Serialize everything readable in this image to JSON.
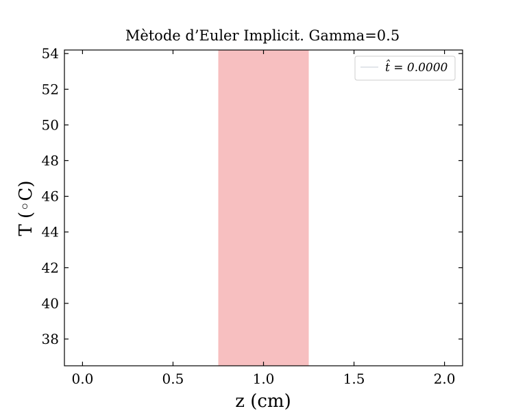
{
  "chart_data": {
    "type": "line",
    "title": "Mètode d’Euler Implicit. Gamma=0.5",
    "xlabel": "z (cm)",
    "ylabel": "T (◦C)",
    "xlim": [
      -0.1,
      2.1
    ],
    "ylim": [
      36.5,
      54.2
    ],
    "x_ticks": [
      0.0,
      0.5,
      1.0,
      1.5,
      2.0
    ],
    "x_tick_labels": [
      "0.0",
      "0.5",
      "1.0",
      "1.5",
      "2.0"
    ],
    "y_ticks": [
      38,
      40,
      42,
      44,
      46,
      48,
      50,
      52,
      54
    ],
    "y_tick_labels": [
      "38",
      "40",
      "42",
      "44",
      "46",
      "48",
      "50",
      "52",
      "54"
    ],
    "shaded_region": {
      "x_start": 0.75,
      "x_end": 1.25,
      "color": "#f7bfc0"
    },
    "series": [
      {
        "name": "t̂ = 0.0000",
        "color": "#d9dde3",
        "x": [],
        "y": []
      }
    ],
    "legend": {
      "position": "top-right",
      "label": "t̂ = 0.0000"
    },
    "grid": false,
    "colors": {
      "frame": "#000000",
      "shade": "#f7bfc0",
      "legend_line": "#d9dde3"
    }
  }
}
